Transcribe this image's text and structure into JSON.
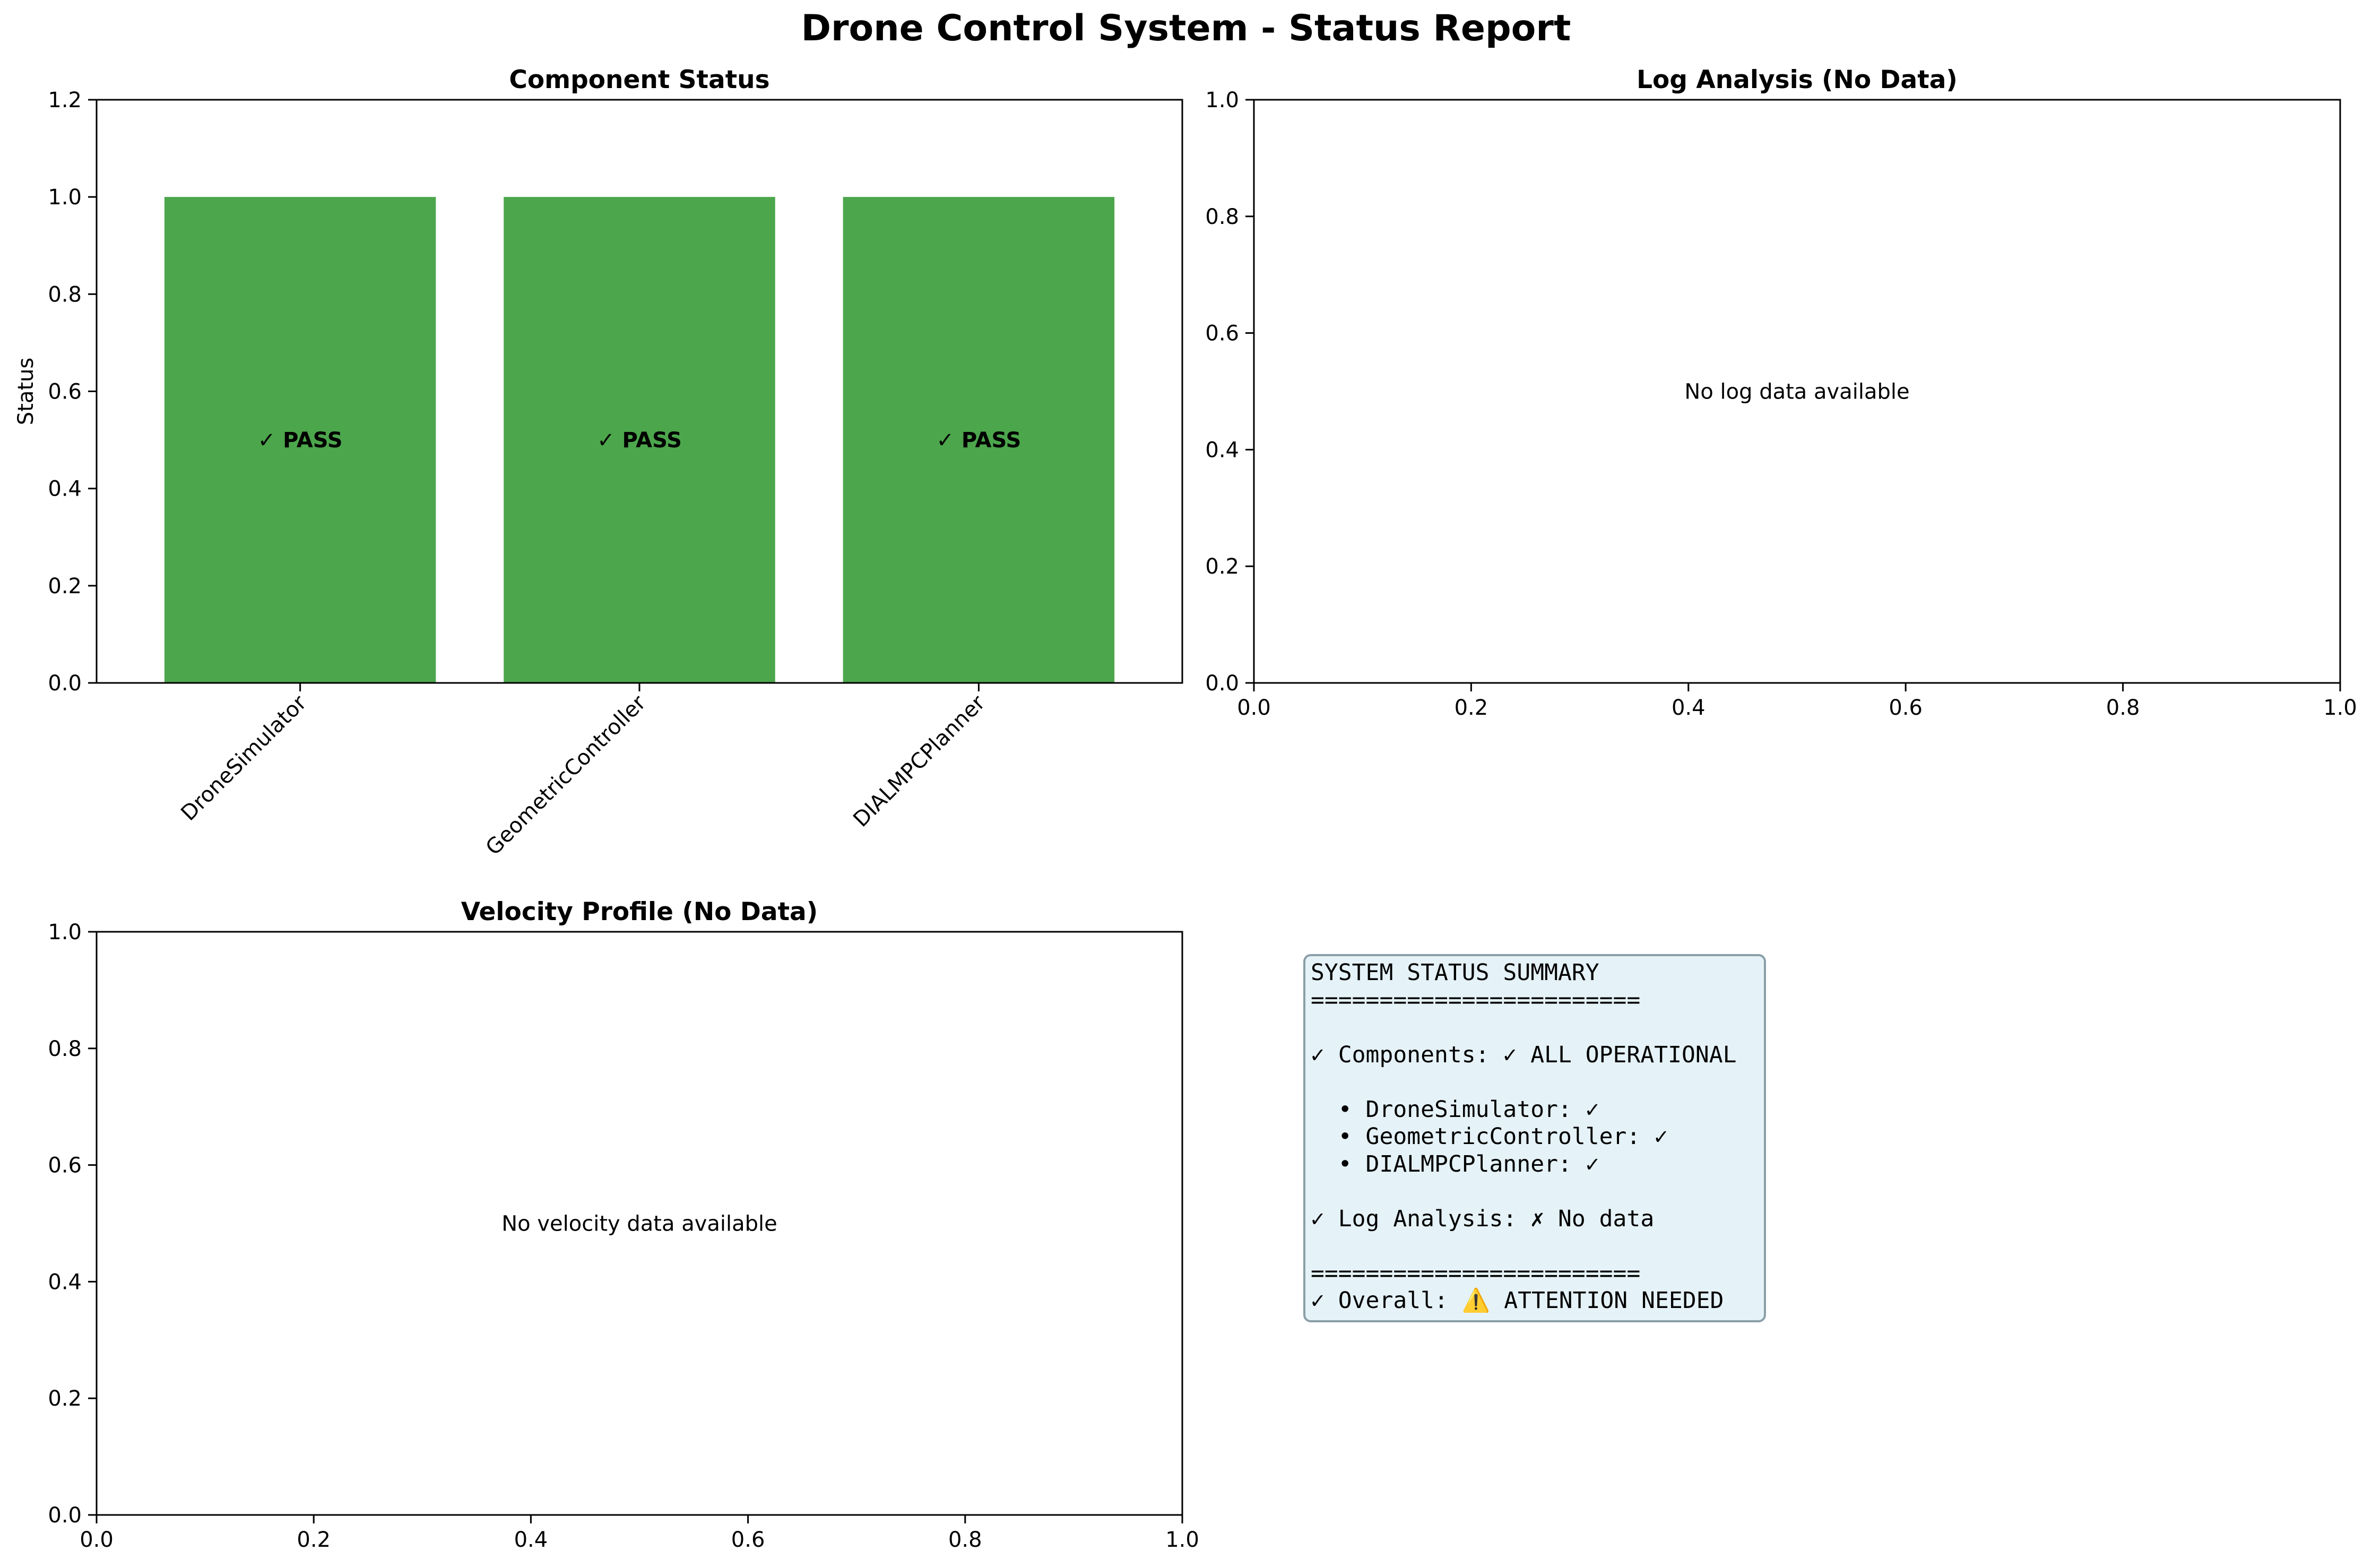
{
  "suptitle": "Drone Control System - Status Report",
  "chart_data": [
    {
      "type": "bar",
      "title": "Component Status",
      "ylabel": "Status",
      "xlabel": "",
      "categories": [
        "DroneSimulator",
        "GeometricController",
        "DIALMPCPlanner"
      ],
      "values": [
        1,
        1,
        1
      ],
      "bar_labels": [
        "✓ PASS",
        "✓ PASS",
        "✓ PASS"
      ],
      "bar_color": "#4ca64c",
      "ylim": [
        0,
        1.2
      ],
      "yticks": [
        "0.0",
        "0.2",
        "0.4",
        "0.6",
        "0.8",
        "1.0",
        "1.2"
      ],
      "grid": false
    },
    {
      "type": "line",
      "title": "Log Analysis (No Data)",
      "message": "No log data available",
      "xlim": [
        0,
        1
      ],
      "ylim": [
        0,
        1
      ],
      "xticks": [
        "0.0",
        "0.2",
        "0.4",
        "0.6",
        "0.8",
        "1.0"
      ],
      "yticks": [
        "0.0",
        "0.2",
        "0.4",
        "0.6",
        "0.8",
        "1.0"
      ]
    },
    {
      "type": "line",
      "title": "Velocity Profile (No Data)",
      "message": "No velocity data available",
      "xlim": [
        0,
        1
      ],
      "ylim": [
        0,
        1
      ],
      "xticks": [
        "0.0",
        "0.2",
        "0.4",
        "0.6",
        "0.8",
        "1.0"
      ],
      "yticks": [
        "0.0",
        "0.2",
        "0.4",
        "0.6",
        "0.8",
        "1.0"
      ]
    }
  ],
  "summary": {
    "lines": [
      "SYSTEM STATUS SUMMARY",
      "========================",
      "",
      "✓ Components: ✓ ALL OPERATIONAL",
      "",
      "  • DroneSimulator: ✓",
      "  • GeometricController: ✓",
      "  • DIALMPCPlanner: ✓",
      "",
      "✓ Log Analysis: ✗ No data",
      "",
      "========================",
      "✓ Overall: ⚠️ ATTENTION NEEDED"
    ],
    "background_color": "#add8e6",
    "border_color": "#8a9fa8"
  }
}
